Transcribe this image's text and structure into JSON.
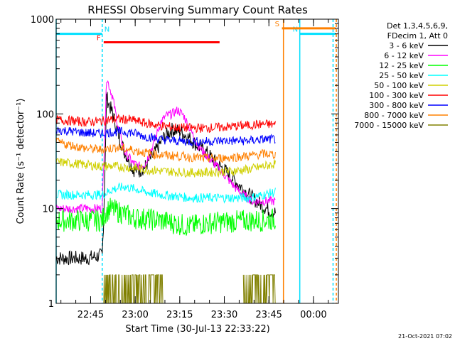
{
  "chart_data": {
    "type": "line",
    "title": "RHESSI Observing Summary Count Rates",
    "xlabel": "Start Time (30-Jul-13 22:33:22)",
    "ylabel": "Count Rate (s⁻¹ detector⁻¹)",
    "y_scale": "log",
    "ylim": [
      1,
      1000
    ],
    "xlim_minutes_after_start": [
      0,
      95
    ],
    "y_ticks": [
      "1",
      "10",
      "100",
      "1000"
    ],
    "x_ticks": [
      {
        "label": "22:45",
        "t": 11.6
      },
      {
        "label": "23:00",
        "t": 26.6
      },
      {
        "label": "23:15",
        "t": 41.6
      },
      {
        "label": "23:30",
        "t": 56.6
      },
      {
        "label": "23:45",
        "t": 71.6
      },
      {
        "label": "00:00",
        "t": 86.6
      }
    ],
    "legend": {
      "header": [
        "Det 1,3,4,5,6,9,",
        "FDecim 1, Att 0"
      ],
      "placement": "right"
    },
    "series": [
      {
        "name": "3 - 6 keV",
        "color": "#000000",
        "t": [
          0,
          6,
          10,
          15.5,
          16,
          17,
          19,
          21,
          23,
          26,
          28,
          30,
          33,
          36,
          39,
          42,
          45,
          48,
          51,
          54,
          57,
          60,
          63,
          66,
          69,
          72,
          74
        ],
        "y": [
          3,
          3,
          3,
          3.2,
          8,
          150,
          100,
          60,
          40,
          26,
          25,
          28,
          38,
          55,
          68,
          65,
          55,
          45,
          38,
          30,
          25,
          20,
          16,
          13,
          11,
          9.5,
          9
        ]
      },
      {
        "name": "6 - 12 keV",
        "color": "#ff00ff",
        "t": [
          0,
          6,
          10,
          15.5,
          16,
          17,
          19,
          21,
          23,
          26,
          28,
          30,
          33,
          35,
          37,
          39,
          41,
          43,
          45,
          48,
          51,
          54,
          57,
          60,
          63,
          66,
          69,
          72,
          74
        ],
        "y": [
          10,
          10,
          10,
          10,
          30,
          240,
          150,
          70,
          40,
          30,
          28,
          30,
          50,
          80,
          95,
          100,
          110,
          95,
          70,
          45,
          35,
          28,
          22,
          17,
          14,
          12,
          12,
          12,
          12
        ]
      },
      {
        "name": "12 - 25 keV",
        "color": "#00ff00",
        "t": [
          0,
          6,
          10,
          15.5,
          16.5,
          18,
          22,
          26,
          30,
          35,
          40,
          45,
          50,
          55,
          60,
          65,
          70,
          74
        ],
        "y": [
          7.5,
          7.5,
          7.5,
          7.5,
          9,
          10,
          9,
          8,
          7.8,
          7.5,
          7,
          6.5,
          7,
          7.2,
          7.3,
          7.5,
          7.5,
          7.8
        ]
      },
      {
        "name": "25 - 50 keV",
        "color": "#00ffff",
        "t": [
          0,
          6,
          10,
          15.5,
          16.5,
          19,
          23,
          27,
          30,
          35,
          40,
          45,
          50,
          55,
          60,
          65,
          70,
          74
        ],
        "y": [
          14,
          14,
          14,
          14,
          14.5,
          16,
          17,
          16,
          15,
          14,
          13.5,
          13,
          13,
          13,
          13,
          13,
          14,
          15
        ]
      },
      {
        "name": "50 - 100 keV",
        "color": "#d0d000",
        "t": [
          0,
          6,
          10,
          15,
          20,
          25,
          30,
          35,
          40,
          45,
          50,
          55,
          60,
          65,
          70,
          74
        ],
        "y": [
          31,
          30,
          29,
          28,
          28,
          27,
          26,
          25,
          24.5,
          24,
          24,
          24.5,
          25,
          26,
          28,
          30
        ]
      },
      {
        "name": "100 - 300 keV",
        "color": "#ff0000",
        "t": [
          0,
          6,
          10,
          15,
          20,
          25,
          30,
          35,
          40,
          45,
          50,
          55,
          60,
          65,
          70,
          74
        ],
        "y": [
          87,
          84,
          82,
          84,
          88,
          87,
          80,
          75,
          72,
          71,
          71,
          72,
          74,
          76,
          78,
          77
        ]
      },
      {
        "name": "300 - 800 keV",
        "color": "#0000ff",
        "t": [
          0,
          6,
          10,
          15,
          20,
          25,
          30,
          35,
          40,
          45,
          50,
          55,
          60,
          65,
          70,
          74
        ],
        "y": [
          68,
          65,
          63,
          62,
          65,
          64,
          58,
          54,
          52,
          51,
          51,
          52,
          52,
          52,
          54,
          54
        ]
      },
      {
        "name": "800 - 7000 keV",
        "color": "#ff8000",
        "t": [
          0,
          6,
          10,
          15,
          20,
          25,
          30,
          35,
          40,
          45,
          50,
          55,
          60,
          65,
          70,
          74
        ],
        "y": [
          50,
          46,
          43,
          42,
          44,
          42,
          39,
          37,
          36,
          35,
          34,
          34,
          35,
          36,
          38,
          37
        ]
      },
      {
        "name": "7000 - 15000 keV",
        "color": "#808000",
        "t": [
          16,
          17,
          18,
          19,
          20,
          21,
          22,
          23,
          24,
          25,
          26,
          27,
          28,
          29,
          30,
          31,
          32,
          33,
          34,
          35,
          36
        ],
        "y": [
          1,
          2,
          1,
          2,
          1,
          2,
          1,
          2,
          1,
          2,
          1,
          2,
          1,
          2,
          1,
          2,
          1,
          2,
          1,
          2,
          1
        ]
      },
      {
        "name": "",
        "color": "#808000",
        "t": [
          63,
          64,
          65,
          66,
          67,
          68,
          69,
          70,
          71,
          72,
          73,
          74
        ],
        "y": [
          1,
          2,
          1,
          2,
          1,
          2,
          1,
          2,
          1,
          2,
          1,
          2
        ]
      }
    ],
    "annotations": [
      {
        "label": "N",
        "color": "#00e0ff",
        "t_start": 0,
        "t_end": 15.5,
        "y_level": 700
      },
      {
        "label": "N",
        "color": "#00e0ff",
        "t_start": 82,
        "t_end": 94,
        "y_level": 700
      },
      {
        "label": "F",
        "color": "#ff0000",
        "t_start": 16,
        "t_end": 55,
        "y_level": 570
      },
      {
        "label": "S",
        "color": "#ff8000",
        "t_start": 76,
        "t_end": 94,
        "y_level": 800
      }
    ],
    "vertical_markers": [
      {
        "t": 0,
        "color": "#00e0ff",
        "style": "solid"
      },
      {
        "t": 15.5,
        "color": "#00e0ff",
        "style": "dashed"
      },
      {
        "t": 76.5,
        "color": "#ff8000",
        "style": "solid"
      },
      {
        "t": 82,
        "color": "#00e0ff",
        "style": "solid"
      },
      {
        "t": 93.2,
        "color": "#00e0ff",
        "style": "dashed"
      },
      {
        "t": 94.3,
        "color": "#ff8000",
        "style": "dashed"
      }
    ],
    "footer": "21-Oct-2021 07:02"
  }
}
